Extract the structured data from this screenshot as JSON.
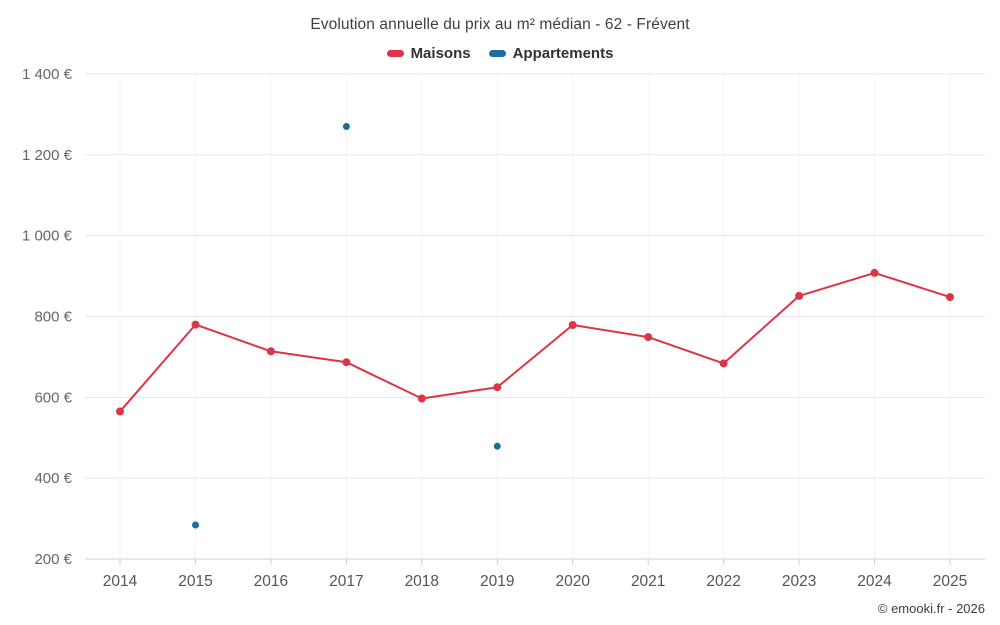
{
  "title": "Evolution annuelle du prix au m² médian - 62 - Frévent",
  "credits": "© emooki.fr - 2026",
  "legend": [
    {
      "id": "maisons",
      "label": "Maisons",
      "color": "#dc3545"
    },
    {
      "id": "appartements",
      "label": "Appartements",
      "color": "#1f6f9e"
    }
  ],
  "chart_data": {
    "type": "line",
    "title": "Evolution annuelle du prix au m² médian - 62 - Frévent",
    "categories": [
      2014,
      2015,
      2016,
      2017,
      2018,
      2019,
      2020,
      2021,
      2022,
      2023,
      2024,
      2025
    ],
    "series": [
      {
        "name": "Maisons",
        "type": "line",
        "color": "#dc3545",
        "values": [
          565,
          780,
          714,
          687,
          597,
          625,
          779,
          749,
          684,
          851,
          908,
          848
        ]
      },
      {
        "name": "Appartements",
        "type": "scatter",
        "color": "#1f6f9e",
        "values": [
          null,
          284,
          null,
          1270,
          null,
          479,
          null,
          null,
          null,
          null,
          null,
          null
        ]
      }
    ],
    "xlabel": "",
    "ylabel": "",
    "ylim": [
      200,
      1400
    ],
    "ytick_step": 200,
    "ytick_suffix": " €",
    "grid": true,
    "legend_position": "top"
  }
}
